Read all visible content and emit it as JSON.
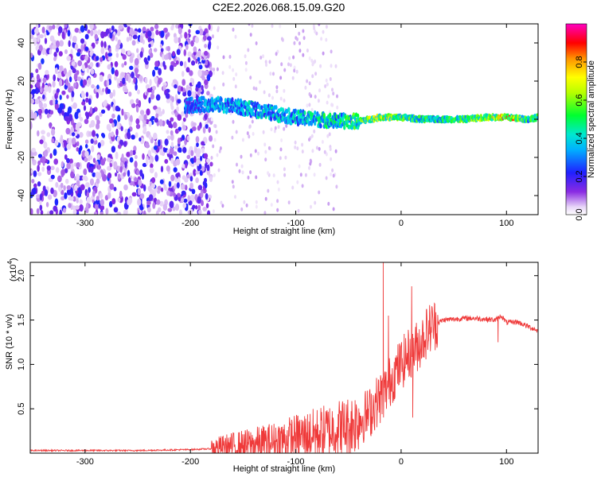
{
  "title": "C2E2.2026.068.15.09.G20",
  "chart_data": [
    {
      "type": "heatmap",
      "xlabel": "Height of straight line (km)",
      "ylabel": "Frequency (Hz)",
      "xlim": [
        -352,
        130
      ],
      "ylim": [
        -50,
        50
      ],
      "xticks": [
        -300,
        -200,
        -100,
        0,
        100
      ],
      "yticks": [
        -40,
        -20,
        0,
        20,
        40
      ],
      "colorbar": {
        "label": "Normalized spectral amplitude",
        "range": [
          0.0,
          1.0
        ],
        "ticks": [
          0.0,
          0.2,
          0.4,
          0.6,
          0.8
        ],
        "colormap": "rainbow (white-violet-blue-cyan-green-yellow-orange-red-magenta)"
      },
      "noise_region_km": [
        -352,
        -180
      ],
      "signal_trace": {
        "x_km": [
          -205,
          -180,
          -160,
          -140,
          -120,
          -100,
          -80,
          -60,
          -40,
          -20,
          0,
          20,
          40,
          60,
          80,
          100,
          120,
          130
        ],
        "freq_hz": [
          7,
          8,
          7,
          5,
          3,
          1,
          0,
          -1,
          -1,
          1,
          1,
          0,
          0,
          0,
          1,
          1,
          0,
          1
        ],
        "amplitude": [
          0.3,
          0.35,
          0.35,
          0.4,
          0.4,
          0.4,
          0.45,
          0.45,
          0.55,
          0.7,
          0.55,
          0.5,
          0.5,
          0.55,
          0.6,
          0.85,
          0.5,
          0.55
        ]
      }
    },
    {
      "type": "line",
      "xlabel": "Height of straight line (km)",
      "ylabel": "SNR (10 * v/v)",
      "y_multiplier": "(x10",
      "y_multiplier_exp": "4",
      "y_multiplier_close": ")",
      "xlim": [
        -352,
        130
      ],
      "ylim": [
        0.0,
        2.15
      ],
      "xticks": [
        -300,
        -200,
        -100,
        0,
        100
      ],
      "yticks": [
        0.5,
        1.0,
        1.5,
        2.0
      ],
      "ytick_labels": [
        "0.5",
        "1.0",
        "1.5",
        "2.0"
      ],
      "color": "#ef3a3a",
      "series": [
        {
          "name": "SNR",
          "x": [
            -352,
            -300,
            -250,
            -200,
            -180,
            -160,
            -140,
            -120,
            -100,
            -90,
            -80,
            -70,
            -60,
            -50,
            -40,
            -30,
            -25,
            -20,
            -15,
            -10,
            -5,
            0,
            5,
            10,
            15,
            20,
            25,
            30,
            40,
            50,
            60,
            70,
            80,
            90,
            95,
            100,
            110,
            120,
            130
          ],
          "y": [
            0.03,
            0.03,
            0.03,
            0.04,
            0.05,
            0.08,
            0.1,
            0.13,
            0.18,
            0.2,
            0.22,
            0.25,
            0.28,
            0.3,
            0.38,
            0.45,
            0.55,
            0.62,
            0.7,
            0.82,
            0.92,
            1.0,
            1.08,
            1.15,
            1.2,
            1.28,
            1.38,
            1.44,
            1.5,
            1.51,
            1.52,
            1.52,
            1.51,
            1.5,
            1.55,
            1.47,
            1.48,
            1.43,
            1.38
          ]
        }
      ],
      "spikes": [
        {
          "x": -17,
          "y": 2.15
        },
        {
          "x": -12,
          "y": 1.55
        },
        {
          "x": 10,
          "y": 1.88
        },
        {
          "x": 11,
          "y": 0.4
        },
        {
          "x": 92,
          "y": 1.25
        }
      ]
    }
  ]
}
